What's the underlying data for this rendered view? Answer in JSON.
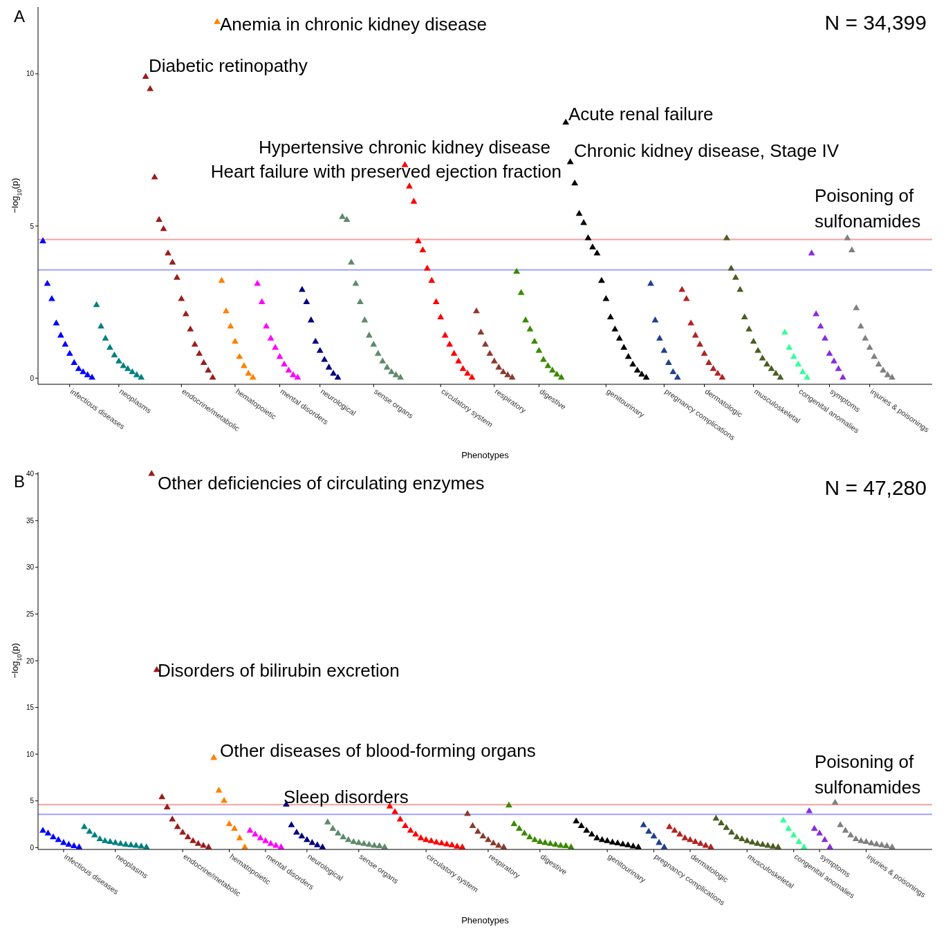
{
  "chart_data": [
    {
      "type": "scatter",
      "title": "A",
      "xlabel": "Phenotypes",
      "ylabel": "−log$_{10}$(p)",
      "marker": "triangle",
      "grid": false,
      "categories": [
        null,
        null,
        null,
        null,
        null,
        null,
        "infectious diseases",
        null,
        null,
        null,
        null,
        null,
        null,
        null,
        null,
        null,
        null,
        "neoplasms",
        null,
        null,
        null,
        null,
        null,
        null,
        null,
        null,
        null,
        null,
        null,
        null,
        null,
        "endocrine/metabolic",
        null,
        null,
        null,
        null,
        null,
        null,
        null,
        null,
        null,
        null,
        null,
        "hematopoietic",
        null,
        null,
        null,
        null,
        null,
        null,
        null,
        null,
        null,
        "mental disorders",
        null,
        null,
        null,
        null,
        null,
        null,
        null,
        null,
        "neurological",
        null,
        null,
        null,
        null,
        null,
        null,
        null,
        null,
        null,
        null,
        null,
        "sense organs",
        null,
        null,
        null,
        null,
        null,
        null,
        null,
        null,
        null,
        null,
        null,
        null,
        null,
        null,
        "circulatory system",
        null,
        null,
        null,
        null,
        null,
        null,
        null,
        null,
        null,
        null,
        null,
        "respiratory",
        null,
        null,
        null,
        null,
        null,
        null,
        null,
        null,
        null,
        "digestive",
        null,
        null,
        null,
        null,
        null,
        null,
        null,
        null,
        null,
        null,
        null,
        null,
        null,
        null,
        "genitourinary",
        null,
        null,
        null,
        null,
        null,
        null,
        null,
        null,
        null,
        null,
        null,
        null,
        "pregnancy complications",
        null,
        null,
        null,
        null,
        null,
        null,
        null,
        null,
        "dermatologic",
        null,
        null,
        null,
        null,
        null,
        null,
        null,
        null,
        null,
        null,
        "musculoskeletal",
        null,
        null,
        null,
        null,
        null,
        null,
        null,
        null,
        null,
        "congenital anomalies",
        null,
        null,
        null,
        null,
        null,
        null,
        "symptoms",
        null,
        null,
        null,
        null,
        null,
        null,
        null,
        null,
        "injuries & poisonings",
        null,
        null,
        null,
        null,
        null
      ],
      "values": [
        4.5,
        3.1,
        2.6,
        1.8,
        1.4,
        1.1,
        0.8,
        0.5,
        0.3,
        0.2,
        0.1,
        0.02,
        2.4,
        1.7,
        1.3,
        1.0,
        0.75,
        0.55,
        0.4,
        0.3,
        0.2,
        0.1,
        0.02,
        9.9,
        9.5,
        6.6,
        5.2,
        4.9,
        4.1,
        3.8,
        3.3,
        2.6,
        2.1,
        1.6,
        1.1,
        0.8,
        0.5,
        0.25,
        0.02,
        11.7,
        3.2,
        2.2,
        1.7,
        1.2,
        0.7,
        0.4,
        0.15,
        0.02,
        3.1,
        2.5,
        1.7,
        1.3,
        1.0,
        0.7,
        0.45,
        0.25,
        0.1,
        0.02,
        2.9,
        2.5,
        1.9,
        1.2,
        0.9,
        0.6,
        0.35,
        0.15,
        0.02,
        5.3,
        5.2,
        3.8,
        3.1,
        2.5,
        1.9,
        1.4,
        1.1,
        0.8,
        0.55,
        0.35,
        0.2,
        0.1,
        0.02,
        7.0,
        6.3,
        5.8,
        4.5,
        4.2,
        3.6,
        3.2,
        2.5,
        2.0,
        1.4,
        1.1,
        0.8,
        0.55,
        0.3,
        0.15,
        0.02,
        2.2,
        1.5,
        1.1,
        0.8,
        0.55,
        0.35,
        0.2,
        0.1,
        0.02,
        3.5,
        2.8,
        1.9,
        1.6,
        1.2,
        0.9,
        0.6,
        0.4,
        0.25,
        0.12,
        0.02,
        8.4,
        7.1,
        6.4,
        5.4,
        5.1,
        4.6,
        4.3,
        4.1,
        3.2,
        2.6,
        2.0,
        1.6,
        1.3,
        1.0,
        0.7,
        0.45,
        0.25,
        0.12,
        0.02,
        3.1,
        1.9,
        1.3,
        0.9,
        0.5,
        0.2,
        0.02,
        2.9,
        2.6,
        1.8,
        1.4,
        1.1,
        0.8,
        0.5,
        0.3,
        0.15,
        0.02,
        4.6,
        3.6,
        3.3,
        2.9,
        2.0,
        1.6,
        1.2,
        0.9,
        0.65,
        0.45,
        0.3,
        0.15,
        0.02,
        1.5,
        1.0,
        0.7,
        0.45,
        0.2,
        0.02,
        4.1,
        2.1,
        1.7,
        1.3,
        0.8,
        0.55,
        0.3,
        0.02,
        4.6,
        4.2,
        2.3,
        1.7,
        1.3,
        1.0,
        0.7,
        0.45,
        0.25,
        0.1,
        0.02
      ],
      "colors": [
        "#0000ff",
        "#0000ff",
        "#0000ff",
        "#0000ff",
        "#0000ff",
        "#0000ff",
        "#0000ff",
        "#0000ff",
        "#0000ff",
        "#0000ff",
        "#0000ff",
        "#0000ff",
        "#008080",
        "#008080",
        "#008080",
        "#008080",
        "#008080",
        "#008080",
        "#008080",
        "#008080",
        "#008080",
        "#008080",
        "#008080",
        "#9b1c1c",
        "#9b1c1c",
        "#9b1c1c",
        "#9b1c1c",
        "#9b1c1c",
        "#9b1c1c",
        "#9b1c1c",
        "#9b1c1c",
        "#9b1c1c",
        "#9b1c1c",
        "#9b1c1c",
        "#9b1c1c",
        "#9b1c1c",
        "#9b1c1c",
        "#9b1c1c",
        "#9b1c1c",
        "#ff8000",
        "#ff8000",
        "#ff8000",
        "#ff8000",
        "#ff8000",
        "#ff8000",
        "#ff8000",
        "#ff8000",
        "#ff8000",
        "#ff00ff",
        "#ff00ff",
        "#ff00ff",
        "#ff00ff",
        "#ff00ff",
        "#ff00ff",
        "#ff00ff",
        "#ff00ff",
        "#ff00ff",
        "#ff00ff",
        "#000080",
        "#000080",
        "#000080",
        "#000080",
        "#000080",
        "#000080",
        "#000080",
        "#000080",
        "#000080",
        "#5f8a6a",
        "#5f8a6a",
        "#5f8a6a",
        "#5f8a6a",
        "#5f8a6a",
        "#5f8a6a",
        "#5f8a6a",
        "#5f8a6a",
        "#5f8a6a",
        "#5f8a6a",
        "#5f8a6a",
        "#5f8a6a",
        "#5f8a6a",
        "#5f8a6a",
        "#ff0000",
        "#ff0000",
        "#ff0000",
        "#ff0000",
        "#ff0000",
        "#ff0000",
        "#ff0000",
        "#ff0000",
        "#ff0000",
        "#ff0000",
        "#ff0000",
        "#ff0000",
        "#ff0000",
        "#ff0000",
        "#ff0000",
        "#ff0000",
        "#8b3a2f",
        "#8b3a2f",
        "#8b3a2f",
        "#8b3a2f",
        "#8b3a2f",
        "#8b3a2f",
        "#8b3a2f",
        "#8b3a2f",
        "#8b3a2f",
        "#3a8a00",
        "#3a8a00",
        "#3a8a00",
        "#3a8a00",
        "#3a8a00",
        "#3a8a00",
        "#3a8a00",
        "#3a8a00",
        "#3a8a00",
        "#3a8a00",
        "#3a8a00",
        "#000000",
        "#000000",
        "#000000",
        "#000000",
        "#000000",
        "#000000",
        "#000000",
        "#000000",
        "#000000",
        "#000000",
        "#000000",
        "#000000",
        "#000000",
        "#000000",
        "#000000",
        "#000000",
        "#000000",
        "#000000",
        "#000000",
        "#1f3f8f",
        "#1f3f8f",
        "#1f3f8f",
        "#1f3f8f",
        "#1f3f8f",
        "#1f3f8f",
        "#1f3f8f",
        "#b22222",
        "#b22222",
        "#b22222",
        "#b22222",
        "#b22222",
        "#b22222",
        "#b22222",
        "#b22222",
        "#b22222",
        "#b22222",
        "#4a5e23",
        "#4a5e23",
        "#4a5e23",
        "#4a5e23",
        "#4a5e23",
        "#4a5e23",
        "#4a5e23",
        "#4a5e23",
        "#4a5e23",
        "#4a5e23",
        "#4a5e23",
        "#4a5e23",
        "#4a5e23",
        "#33ff99",
        "#33ff99",
        "#33ff99",
        "#33ff99",
        "#33ff99",
        "#33ff99",
        "#8a2be2",
        "#8a2be2",
        "#8a2be2",
        "#8a2be2",
        "#8a2be2",
        "#8a2be2",
        "#8a2be2",
        "#8a2be2",
        "#808080",
        "#808080",
        "#808080",
        "#808080",
        "#808080",
        "#808080",
        "#808080",
        "#808080",
        "#808080",
        "#808080",
        "#808080"
      ],
      "ylim": [
        -0.2,
        12.2
      ],
      "yticks": [
        0,
        5,
        10
      ],
      "ref_lines": [
        {
          "axis": "y",
          "value": 4.56,
          "color": "#f4a0a0"
        },
        {
          "axis": "y",
          "value": 3.56,
          "color": "#a0a0f8"
        }
      ],
      "annotations": [
        "N = 34,399",
        "Anemia in chronic kidney disease",
        "Diabetic retinopathy",
        "Acute renal failure",
        "Chronic kidney disease, Stage IV",
        "Hypertensive chronic kidney disease",
        "Heart failure with preserved ejection fraction",
        "Poisoning of sulfonamides"
      ]
    },
    {
      "type": "scatter",
      "title": "B",
      "xlabel": "Phenotypes",
      "ylabel": "−log$_{10}$(p)",
      "marker": "triangle",
      "grid": false,
      "categories": [
        null,
        null,
        null,
        null,
        "infectious diseases",
        null,
        null,
        null,
        null,
        null,
        null,
        null,
        null,
        null,
        "neoplasms",
        null,
        null,
        null,
        null,
        null,
        null,
        null,
        null,
        null,
        null,
        null,
        null,
        "endocrine/metabolic",
        null,
        null,
        null,
        null,
        null,
        null,
        null,
        null,
        "hematopoietic",
        null,
        null,
        null,
        null,
        null,
        null,
        "mental disorders",
        null,
        null,
        null,
        null,
        null,
        null,
        null,
        "neurological",
        null,
        null,
        null,
        null,
        null,
        null,
        null,
        null,
        null,
        "sense organs",
        null,
        null,
        null,
        null,
        null,
        null,
        null,
        null,
        null,
        null,
        null,
        null,
        "circulatory system",
        null,
        null,
        null,
        null,
        null,
        null,
        null,
        null,
        null,
        null,
        null,
        "respiratory",
        null,
        null,
        null,
        null,
        null,
        null,
        null,
        null,
        null,
        "digestive",
        null,
        null,
        null,
        null,
        null,
        null,
        null,
        null,
        null,
        null,
        null,
        null,
        "genitourinary",
        null,
        null,
        null,
        null,
        null,
        null,
        null,
        null,
        "pregnancy complications",
        null,
        null,
        null,
        null,
        null,
        null,
        "dermatologic",
        null,
        null,
        null,
        null,
        null,
        null,
        null,
        null,
        null,
        null,
        "musculoskeletal",
        null,
        null,
        null,
        null,
        null,
        null,
        null,
        null,
        "congenital anomalies",
        null,
        null,
        null,
        null,
        "symptoms",
        null,
        null,
        null,
        null,
        null,
        null,
        null,
        null,
        "injuries & poisonings",
        null,
        null,
        null,
        null,
        null
      ],
      "values": [
        1.8,
        1.5,
        1.1,
        0.8,
        0.5,
        0.3,
        0.15,
        0.02,
        2.2,
        1.7,
        1.3,
        0.9,
        0.7,
        0.6,
        0.5,
        0.4,
        0.3,
        0.25,
        0.2,
        0.12,
        0.02,
        40.0,
        19.0,
        5.4,
        4.3,
        3.0,
        2.2,
        1.6,
        1.1,
        0.7,
        0.4,
        0.2,
        0.02,
        9.6,
        6.1,
        5.0,
        2.5,
        2.0,
        1.0,
        0.02,
        1.8,
        1.4,
        1.0,
        0.7,
        0.4,
        0.2,
        0.02,
        4.6,
        2.4,
        1.6,
        1.2,
        0.8,
        0.5,
        0.25,
        0.02,
        2.7,
        2.0,
        1.5,
        1.1,
        0.8,
        0.6,
        0.5,
        0.4,
        0.3,
        0.2,
        0.15,
        0.02,
        4.4,
        3.8,
        3.0,
        2.3,
        1.8,
        1.4,
        1.0,
        0.8,
        0.7,
        0.55,
        0.45,
        0.35,
        0.25,
        0.1,
        0.02,
        3.6,
        2.3,
        1.7,
        1.2,
        0.8,
        0.45,
        0.2,
        0.02,
        4.5,
        2.5,
        2.0,
        1.5,
        1.1,
        0.8,
        0.6,
        0.5,
        0.4,
        0.3,
        0.2,
        0.15,
        0.02,
        2.8,
        2.3,
        1.8,
        1.4,
        1.0,
        0.8,
        0.7,
        0.55,
        0.45,
        0.35,
        0.25,
        0.12,
        0.02,
        2.4,
        1.7,
        1.2,
        0.5,
        0.02,
        2.2,
        1.8,
        1.4,
        1.0,
        0.8,
        0.6,
        0.4,
        0.2,
        0.02,
        3.1,
        2.6,
        2.1,
        1.6,
        1.1,
        0.9,
        0.7,
        0.55,
        0.4,
        0.3,
        0.2,
        0.1,
        0.02,
        2.9,
        2.0,
        1.3,
        0.6,
        0.02,
        3.9,
        2.0,
        1.5,
        0.8,
        0.02,
        4.8,
        2.4,
        1.8,
        1.3,
        0.9,
        0.7,
        0.6,
        0.45,
        0.35,
        0.25,
        0.15,
        0.02
      ],
      "colors": [
        "#0000ff",
        "#0000ff",
        "#0000ff",
        "#0000ff",
        "#0000ff",
        "#0000ff",
        "#0000ff",
        "#0000ff",
        "#008080",
        "#008080",
        "#008080",
        "#008080",
        "#008080",
        "#008080",
        "#008080",
        "#008080",
        "#008080",
        "#008080",
        "#008080",
        "#008080",
        "#008080",
        "#9b1c1c",
        "#9b1c1c",
        "#9b1c1c",
        "#9b1c1c",
        "#9b1c1c",
        "#9b1c1c",
        "#9b1c1c",
        "#9b1c1c",
        "#9b1c1c",
        "#9b1c1c",
        "#9b1c1c",
        "#9b1c1c",
        "#ff8000",
        "#ff8000",
        "#ff8000",
        "#ff8000",
        "#ff8000",
        "#ff8000",
        "#ff8000",
        "#ff00ff",
        "#ff00ff",
        "#ff00ff",
        "#ff00ff",
        "#ff00ff",
        "#ff00ff",
        "#ff00ff",
        "#000080",
        "#000080",
        "#000080",
        "#000080",
        "#000080",
        "#000080",
        "#000080",
        "#000080",
        "#5f8a6a",
        "#5f8a6a",
        "#5f8a6a",
        "#5f8a6a",
        "#5f8a6a",
        "#5f8a6a",
        "#5f8a6a",
        "#5f8a6a",
        "#5f8a6a",
        "#5f8a6a",
        "#5f8a6a",
        "#5f8a6a",
        "#ff0000",
        "#ff0000",
        "#ff0000",
        "#ff0000",
        "#ff0000",
        "#ff0000",
        "#ff0000",
        "#ff0000",
        "#ff0000",
        "#ff0000",
        "#ff0000",
        "#ff0000",
        "#ff0000",
        "#ff0000",
        "#ff0000",
        "#8b3a2f",
        "#8b3a2f",
        "#8b3a2f",
        "#8b3a2f",
        "#8b3a2f",
        "#8b3a2f",
        "#8b3a2f",
        "#8b3a2f",
        "#3a8a00",
        "#3a8a00",
        "#3a8a00",
        "#3a8a00",
        "#3a8a00",
        "#3a8a00",
        "#3a8a00",
        "#3a8a00",
        "#3a8a00",
        "#3a8a00",
        "#3a8a00",
        "#3a8a00",
        "#3a8a00",
        "#000000",
        "#000000",
        "#000000",
        "#000000",
        "#000000",
        "#000000",
        "#000000",
        "#000000",
        "#000000",
        "#000000",
        "#000000",
        "#000000",
        "#000000",
        "#1f3f8f",
        "#1f3f8f",
        "#1f3f8f",
        "#1f3f8f",
        "#1f3f8f",
        "#b22222",
        "#b22222",
        "#b22222",
        "#b22222",
        "#b22222",
        "#b22222",
        "#b22222",
        "#b22222",
        "#b22222",
        "#4a5e23",
        "#4a5e23",
        "#4a5e23",
        "#4a5e23",
        "#4a5e23",
        "#4a5e23",
        "#4a5e23",
        "#4a5e23",
        "#4a5e23",
        "#4a5e23",
        "#4a5e23",
        "#4a5e23",
        "#4a5e23",
        "#33ff99",
        "#33ff99",
        "#33ff99",
        "#33ff99",
        "#33ff99",
        "#8a2be2",
        "#8a2be2",
        "#8a2be2",
        "#8a2be2",
        "#8a2be2",
        "#808080",
        "#808080",
        "#808080",
        "#808080",
        "#808080",
        "#808080",
        "#808080",
        "#808080",
        "#808080",
        "#808080",
        "#808080",
        "#808080"
      ],
      "ylim": [
        -0.2,
        40.2
      ],
      "yticks": [
        0,
        5,
        10,
        15,
        20,
        25,
        30,
        35,
        40
      ],
      "ref_lines": [
        {
          "axis": "y",
          "value": 4.6,
          "color": "#f4a0a0"
        },
        {
          "axis": "y",
          "value": 3.55,
          "color": "#a0a0f8"
        }
      ],
      "annotations": [
        "N = 47,280",
        "Other deficiencies of circulating enzymes",
        "Disorders of bilirubin excretion",
        "Other diseases of blood-forming organs",
        "Sleep disorders",
        "Poisoning of sulfonamides"
      ]
    }
  ]
}
